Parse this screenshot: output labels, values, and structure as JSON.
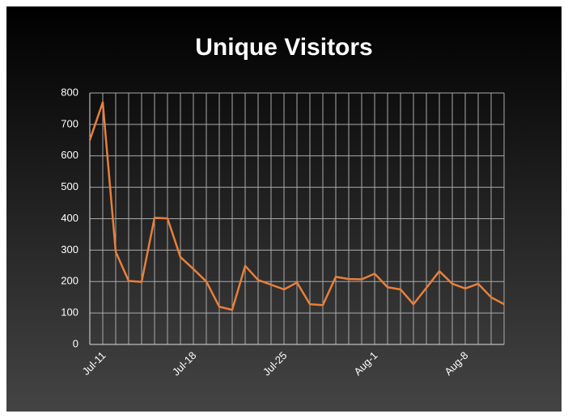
{
  "chart_data": {
    "type": "line",
    "title": "Unique Visitors",
    "categories": [
      null,
      "Jul-11",
      null,
      null,
      null,
      null,
      null,
      null,
      "Jul-18",
      null,
      null,
      null,
      null,
      null,
      null,
      "Jul-25",
      null,
      null,
      null,
      null,
      null,
      null,
      "Aug-1",
      null,
      null,
      null,
      null,
      null,
      null,
      "Aug-8",
      null,
      null,
      null
    ],
    "series": [
      {
        "name": "Unique Visitors",
        "color": "#e8803a",
        "values": [
          650,
          770,
          295,
          202,
          199,
          403,
          401,
          278,
          240,
          200,
          120,
          110,
          250,
          205,
          190,
          175,
          197,
          128,
          125,
          215,
          208,
          207,
          225,
          182,
          175,
          128,
          180,
          233,
          193,
          178,
          193,
          150,
          128
        ]
      }
    ],
    "ylim": [
      0,
      800
    ],
    "yticks": [
      0,
      100,
      200,
      300,
      400,
      500,
      600,
      700,
      800
    ],
    "grid": true
  }
}
